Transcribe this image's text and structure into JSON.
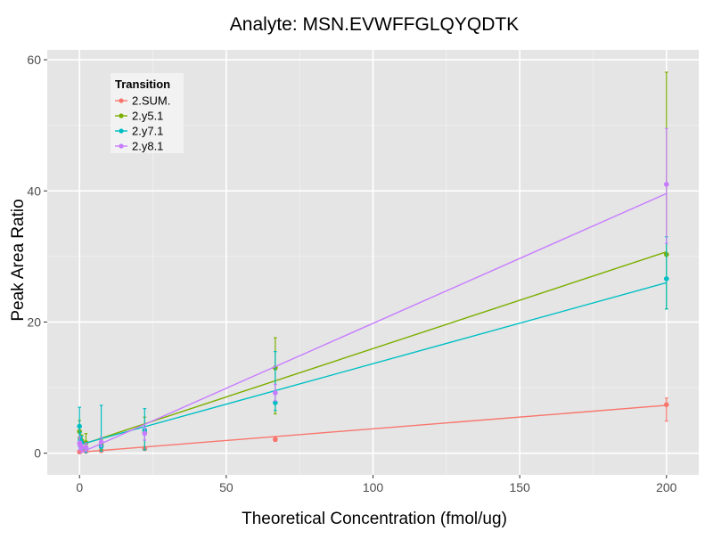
{
  "colors": {
    "panel_bg": "#e5e5e5",
    "grid_major": "#ffffff",
    "grid_minor": "#f2f2f2",
    "axis_text": "#4d4d4d",
    "text": "#000000"
  },
  "chart_data": {
    "type": "scatter",
    "title": "Analyte: MSN.EVWFFGLQYQDTK",
    "xlabel": "Theoretical Concentration (fmol/ug)",
    "ylabel": "Peak Area Ratio",
    "xlim": [
      -11,
      211
    ],
    "ylim": [
      -3.3,
      61.5
    ],
    "xticks": [
      0,
      50,
      100,
      150,
      200
    ],
    "yticks": [
      0,
      20,
      40,
      60
    ],
    "grid": true,
    "legend": {
      "title": "Transition",
      "position": "top-left inside"
    },
    "series": [
      {
        "name": "2.SUM.",
        "color": "#f8766d",
        "points": [
          {
            "x": 0,
            "y": 0.2,
            "ylo": 0.1,
            "yhi": 0.4
          },
          {
            "x": 0.25,
            "y": 0.3,
            "ylo": 0.2,
            "yhi": 0.4
          },
          {
            "x": 0.74,
            "y": 0.4,
            "ylo": 0.3,
            "yhi": 0.5
          },
          {
            "x": 2.2,
            "y": 0.3,
            "ylo": 0.2,
            "yhi": 0.4
          },
          {
            "x": 7.4,
            "y": 0.4,
            "ylo": 0.3,
            "yhi": 0.5
          },
          {
            "x": 22.2,
            "y": 0.7,
            "ylo": 0.5,
            "yhi": 1.0
          },
          {
            "x": 66.7,
            "y": 2.1,
            "ylo": 1.8,
            "yhi": 2.4
          },
          {
            "x": 200,
            "y": 7.4,
            "ylo": 4.9,
            "yhi": 8.4
          }
        ],
        "fit": {
          "x": [
            0,
            200
          ],
          "y": [
            0.15,
            7.3
          ]
        }
      },
      {
        "name": "2.y5.1",
        "color": "#7cae00",
        "points": [
          {
            "x": 0,
            "y": 3.3,
            "ylo": 1.5,
            "yhi": 5.0
          },
          {
            "x": 0.25,
            "y": 2.3,
            "ylo": 1.2,
            "yhi": 3.4
          },
          {
            "x": 0.74,
            "y": 1.9,
            "ylo": 1.0,
            "yhi": 2.8
          },
          {
            "x": 2.2,
            "y": 1.6,
            "ylo": 0.3,
            "yhi": 3.0
          },
          {
            "x": 7.4,
            "y": 1.3,
            "ylo": 0.5,
            "yhi": 2.1
          },
          {
            "x": 22.2,
            "y": 3.1,
            "ylo": 0.5,
            "yhi": 5.5
          },
          {
            "x": 66.7,
            "y": 13.0,
            "ylo": 6.0,
            "yhi": 17.6
          },
          {
            "x": 200,
            "y": 30.3,
            "ylo": 22.0,
            "yhi": 58.1
          }
        ],
        "fit": {
          "x": [
            0,
            200
          ],
          "y": [
            1.2,
            30.7
          ]
        }
      },
      {
        "name": "2.y7.1",
        "color": "#00bfc4",
        "points": [
          {
            "x": 0,
            "y": 4.1,
            "ylo": 1.0,
            "yhi": 7.0
          },
          {
            "x": 0.25,
            "y": 2.0,
            "ylo": 0.8,
            "yhi": 3.2
          },
          {
            "x": 0.74,
            "y": 1.6,
            "ylo": 0.6,
            "yhi": 2.6
          },
          {
            "x": 2.2,
            "y": 0.8,
            "ylo": 0.1,
            "yhi": 1.5
          },
          {
            "x": 7.4,
            "y": 1.0,
            "ylo": 0.3,
            "yhi": 7.3
          },
          {
            "x": 22.2,
            "y": 3.5,
            "ylo": 0.5,
            "yhi": 6.8
          },
          {
            "x": 66.7,
            "y": 7.7,
            "ylo": 6.5,
            "yhi": 15.5
          },
          {
            "x": 200,
            "y": 26.6,
            "ylo": 22.0,
            "yhi": 33.0
          }
        ],
        "fit": {
          "x": [
            0,
            200
          ],
          "y": [
            1.3,
            26.0
          ]
        }
      },
      {
        "name": "2.y8.1",
        "color": "#c77cff",
        "points": [
          {
            "x": 0,
            "y": 1.5,
            "ylo": 0.5,
            "yhi": 2.5
          },
          {
            "x": 0.25,
            "y": 1.2,
            "ylo": 0.6,
            "yhi": 1.8
          },
          {
            "x": 0.74,
            "y": 0.9,
            "ylo": 0.4,
            "yhi": 1.4
          },
          {
            "x": 2.2,
            "y": 0.9,
            "ylo": 0.3,
            "yhi": 1.5
          },
          {
            "x": 7.4,
            "y": 1.7,
            "ylo": 1.0,
            "yhi": 2.4
          },
          {
            "x": 22.2,
            "y": 3.0,
            "ylo": 2.0,
            "yhi": 4.0
          },
          {
            "x": 66.7,
            "y": 9.2,
            "ylo": 8.0,
            "yhi": 10.5
          },
          {
            "x": 200,
            "y": 41.0,
            "ylo": 32.0,
            "yhi": 49.5
          }
        ],
        "fit": {
          "x": [
            0,
            200
          ],
          "y": [
            0.0,
            39.6
          ]
        }
      }
    ]
  }
}
